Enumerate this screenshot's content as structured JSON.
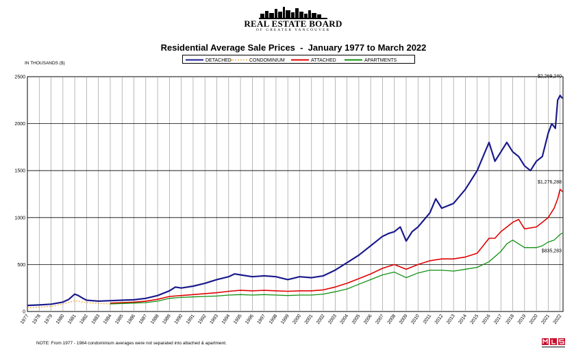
{
  "header": {
    "logo_main": "REAL ESTATE BOARD",
    "logo_sub": "OF GREATER VANCOUVER",
    "title": "Residential Average Sale Prices  -  January 1977 to March 2022"
  },
  "legend": [
    {
      "label": "DETACHED",
      "color": "#1a1a8c",
      "style": "solid"
    },
    {
      "label": "CONDOMINIUM",
      "color": "#f0a020",
      "style": "dotted"
    },
    {
      "label": "ATTACHED",
      "color": "#e00000",
      "style": "solid"
    },
    {
      "label": "APARTMENTS",
      "color": "#109010",
      "style": "solid"
    }
  ],
  "units_label": "IN THOUSANDS ($)",
  "note": "NOTE:  From 1977 - 1984 condominium averages were not separated into attached & apartment.",
  "chart_data": {
    "type": "line",
    "title": "Residential Average Sale Prices  -  January 1977 to March 2022",
    "ylabel": "IN THOUSANDS ($)",
    "ylim": [
      0,
      2500
    ],
    "yticks": [
      "0",
      "500",
      "1000",
      "1500",
      "2000",
      "2500"
    ],
    "xlim": [
      1977,
      2022.25
    ],
    "xticks": [
      "1977",
      "1978",
      "1979",
      "1980",
      "1981",
      "1982",
      "1983",
      "1984",
      "1985",
      "1986",
      "1987",
      "1988",
      "1989",
      "1990",
      "1991",
      "1992",
      "1993",
      "1994",
      "1995",
      "1996",
      "1997",
      "1998",
      "1999",
      "2000",
      "2001",
      "2002",
      "2003",
      "2004",
      "2005",
      "2006",
      "2007",
      "2008",
      "2009",
      "2010",
      "2011",
      "2012",
      "2013",
      "2014",
      "2015",
      "2016",
      "2017",
      "2018",
      "2019",
      "2020",
      "2021",
      "2022"
    ],
    "grid": true,
    "series": [
      {
        "name": "DETACHED",
        "color": "#1a1a8c",
        "width": 2.2,
        "dash": "",
        "x": [
          1977,
          1978,
          1979,
          1980,
          1980.5,
          1981,
          1981.3,
          1981.7,
          1982,
          1983,
          1984,
          1985,
          1986,
          1987,
          1988,
          1989,
          1989.5,
          1990,
          1991,
          1992,
          1993,
          1994,
          1994.5,
          1995,
          1996,
          1997,
          1998,
          1999,
          2000,
          2001,
          2002,
          2003,
          2004,
          2005,
          2006,
          2007,
          2007.5,
          2008,
          2008.5,
          2009,
          2009.5,
          2010,
          2011,
          2011.5,
          2012,
          2013,
          2014,
          2015,
          2015.5,
          2016,
          2016.5,
          2017,
          2017.5,
          2018,
          2018.5,
          2019,
          2019.5,
          2020,
          2020.5,
          2021,
          2021.3,
          2021.6,
          2021.8,
          2022,
          2022.2
        ],
        "y": [
          65,
          70,
          78,
          100,
          130,
          185,
          170,
          140,
          120,
          110,
          115,
          120,
          125,
          140,
          170,
          220,
          260,
          250,
          270,
          300,
          340,
          370,
          400,
          390,
          370,
          380,
          370,
          340,
          370,
          360,
          380,
          440,
          520,
          600,
          700,
          800,
          830,
          850,
          900,
          750,
          850,
          900,
          1050,
          1200,
          1100,
          1150,
          1300,
          1500,
          1650,
          1800,
          1600,
          1700,
          1800,
          1700,
          1650,
          1550,
          1500,
          1600,
          1650,
          1900,
          2000,
          1950,
          2250,
          2300,
          2269
        ]
      },
      {
        "name": "CONDOMINIUM",
        "color": "#f0a020",
        "width": 1.1,
        "dash": "2,2",
        "x": [
          1977,
          1978,
          1979,
          1980,
          1981,
          1982,
          1983,
          1984,
          1985
        ],
        "y": [
          40,
          45,
          55,
          80,
          115,
          95,
          85,
          80,
          90
        ]
      },
      {
        "name": "ATTACHED",
        "color": "#e00000",
        "width": 1.6,
        "dash": "",
        "x": [
          1984,
          1985,
          1986,
          1987,
          1988,
          1989,
          1990,
          1991,
          1992,
          1993,
          1994,
          1995,
          1996,
          1997,
          1998,
          1999,
          2000,
          2001,
          2002,
          2003,
          2004,
          2005,
          2006,
          2007,
          2008,
          2009,
          2010,
          2011,
          2012,
          2013,
          2014,
          2015,
          2015.5,
          2016,
          2016.5,
          2017,
          2018,
          2018.5,
          2019,
          2020,
          2020.5,
          2021,
          2021.5,
          2021.8,
          2022,
          2022.2
        ],
        "y": [
          90,
          95,
          100,
          110,
          130,
          160,
          170,
          180,
          190,
          200,
          215,
          225,
          220,
          225,
          220,
          215,
          220,
          220,
          230,
          260,
          300,
          350,
          400,
          460,
          500,
          450,
          500,
          540,
          560,
          560,
          580,
          620,
          700,
          780,
          780,
          850,
          950,
          980,
          880,
          900,
          950,
          1000,
          1100,
          1200,
          1300,
          1276
        ]
      },
      {
        "name": "APARTMENTS",
        "color": "#109010",
        "width": 1.3,
        "dash": "",
        "x": [
          1984,
          1985,
          1986,
          1987,
          1988,
          1989,
          1990,
          1991,
          1992,
          1993,
          1994,
          1995,
          1996,
          1997,
          1998,
          1999,
          2000,
          2001,
          2002,
          2003,
          2004,
          2005,
          2006,
          2007,
          2008,
          2009,
          2010,
          2011,
          2012,
          2013,
          2014,
          2015,
          2016,
          2017,
          2017.5,
          2018,
          2018.5,
          2019,
          2020,
          2020.5,
          2021,
          2021.5,
          2022,
          2022.2
        ],
        "y": [
          80,
          85,
          90,
          95,
          110,
          140,
          150,
          155,
          160,
          165,
          175,
          180,
          175,
          180,
          175,
          170,
          175,
          175,
          185,
          210,
          240,
          290,
          340,
          390,
          420,
          360,
          410,
          440,
          440,
          430,
          450,
          470,
          530,
          640,
          720,
          760,
          720,
          680,
          680,
          700,
          740,
          760,
          820,
          835
        ]
      }
    ],
    "annotations": [
      {
        "text": "$2,269,240",
        "series": "DETACHED"
      },
      {
        "text": "$1,276,288",
        "series": "ATTACHED"
      },
      {
        "text": "$835,283",
        "series": "APARTMENTS"
      }
    ]
  }
}
